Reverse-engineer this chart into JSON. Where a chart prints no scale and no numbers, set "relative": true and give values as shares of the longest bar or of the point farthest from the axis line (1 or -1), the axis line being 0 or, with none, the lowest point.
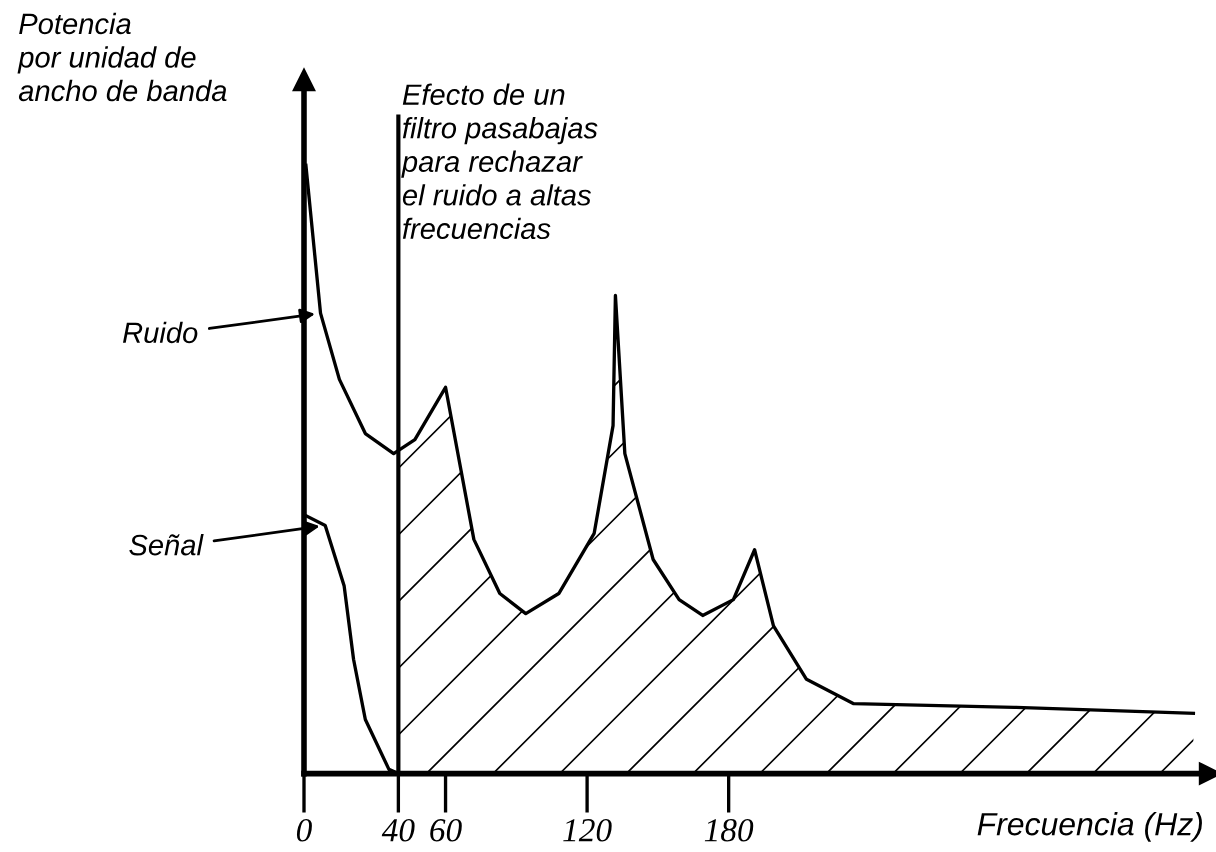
{
  "chart_data": {
    "type": "line",
    "relative": true,
    "ylabel": "Potencia\npor unidad de\nancho de banda",
    "xlabel": "Frecuencia (Hz)",
    "xlim": [
      0,
      384
    ],
    "xticks": [
      0,
      40,
      60,
      120,
      180
    ],
    "grid": false,
    "legend": false,
    "marker": "none",
    "line_style": "solid",
    "series": [
      {
        "color": "#000000",
        "x": [
          0.8,
          7,
          15,
          26,
          38,
          47,
          60,
          72,
          83,
          94,
          108,
          123,
          131,
          132,
          136,
          148,
          159,
          169,
          182,
          191,
          199,
          213,
          233,
          301,
          377
        ],
        "values": [
          1.0,
          0.757,
          0.648,
          0.559,
          0.526,
          0.549,
          0.635,
          0.385,
          0.296,
          0.263,
          0.296,
          0.395,
          0.572,
          0.786,
          0.526,
          0.352,
          0.286,
          0.26,
          0.286,
          0.368,
          0.243,
          0.155,
          0.115,
          0.109,
          0.099
        ]
      },
      {
        "type": "area",
        "color": "#000000",
        "x": [
          40,
          47,
          60,
          72,
          83,
          94,
          108,
          123,
          131,
          132,
          136,
          148,
          159,
          169,
          182,
          191,
          199,
          213,
          233,
          301,
          377
        ],
        "values": [
          0.53,
          0.549,
          0.635,
          0.385,
          0.296,
          0.263,
          0.296,
          0.395,
          0.572,
          0.786,
          0.526,
          0.352,
          0.286,
          0.26,
          0.286,
          0.368,
          0.243,
          0.155,
          0.115,
          0.109,
          0.099
        ]
      },
      {
        "color": "#000000",
        "x": [
          0.8,
          9,
          17,
          21,
          26,
          36,
          40
        ],
        "values": [
          0.424,
          0.408,
          0.309,
          0.188,
          0.089,
          0.007,
          0.0
        ]
      }
    ],
    "ref_lines": [
      {
        "axis": "x",
        "value": 40,
        "label": "Efecto de un\nfiltro pasabajas\npara rechazar\nel ruido a altas\nfrecuencias",
        "color": "#000000"
      }
    ],
    "annotations": [
      {
        "text": "Ruido",
        "x": 7,
        "y": 0.757
      },
      {
        "text": "Señal",
        "x": 9,
        "y": 0.408
      }
    ]
  }
}
